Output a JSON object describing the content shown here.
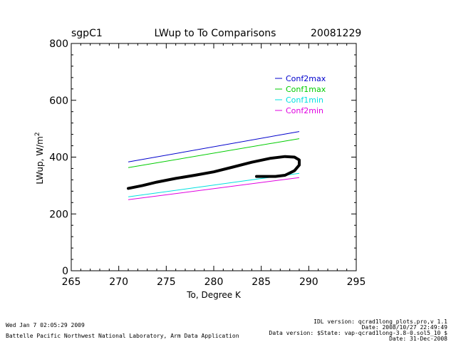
{
  "header": {
    "site": "sgpC1",
    "title": "LWup to To Comparisons",
    "date": "20081229"
  },
  "chart_data": {
    "type": "line",
    "title": "LWup to To Comparisons",
    "xlabel": "To, Degree K",
    "ylabel_main": "LWup, W/m",
    "ylabel_sup": "2",
    "xlim": [
      265,
      295
    ],
    "ylim": [
      0,
      800
    ],
    "x_ticks": [
      265,
      270,
      275,
      280,
      285,
      290,
      295
    ],
    "y_ticks": [
      0,
      200,
      400,
      600,
      800
    ],
    "legend_position": "top-right",
    "series": [
      {
        "name": "Conf2max",
        "color": "#0000cc",
        "x": [
          271,
          289
        ],
        "values": [
          383,
          490
        ]
      },
      {
        "name": "Conf1max",
        "color": "#00cc00",
        "x": [
          271,
          289
        ],
        "values": [
          363,
          465
        ]
      },
      {
        "name": "Conf1min",
        "color": "#00e0e0",
        "x": [
          271,
          289
        ],
        "values": [
          260,
          343
        ]
      },
      {
        "name": "Conf2min",
        "color": "#e000e0",
        "x": [
          271,
          289
        ],
        "values": [
          250,
          328
        ]
      }
    ],
    "observed": {
      "name": "LWup",
      "color": "#000000",
      "x": [
        271.0,
        272.5,
        274.0,
        276.0,
        278.0,
        280.0,
        282.0,
        284.0,
        286.0,
        287.5,
        288.5,
        289.0,
        289.0,
        288.5,
        287.5,
        286.5,
        285.5,
        284.5
      ],
      "values": [
        290,
        300,
        312,
        325,
        336,
        348,
        365,
        382,
        396,
        402,
        400,
        390,
        372,
        352,
        336,
        332,
        332,
        332
      ]
    }
  },
  "footer": {
    "left_line1": "Wed Jan  7 02:05:29 2009",
    "left_line2": "Battelle Pacific Northwest National Laboratory, Arm Data Application",
    "right_line1": "IDL version: qcrad1long_plots.pro,v 1.1",
    "right_line2": "Date: 2008/10/27 22:49:49",
    "right_line3": "Data version: $State: vap-qcrad1long-3.8-0.sol5_10 $",
    "right_line4": "Date: 31-Dec-2008"
  }
}
